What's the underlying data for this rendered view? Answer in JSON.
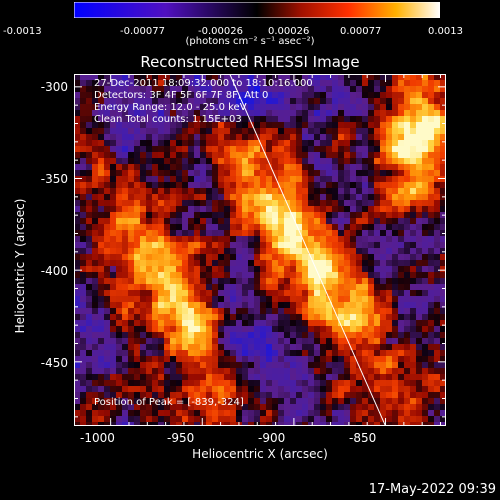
{
  "colorbar": {
    "ticks": [
      "-0.0013",
      "-0.00077",
      "-0.00026",
      "0.00026",
      "0.00077",
      "0.0013"
    ],
    "units": "(photons cm⁻² s⁻¹ asec⁻²)"
  },
  "title": "Reconstructed RHESSI Image",
  "info_lines": [
    "27-Dec-2011 18:09:32.000 to 18:10:16.000",
    "Detectors: 3F 4F 5F 6F 7F 8F, Att 0",
    "Energy Range: 12.0 - 25.0 keV",
    "Clean     Total counts: 1.15E+03"
  ],
  "peak_text": "Position of Peak = [-839,-324]",
  "chart_data": {
    "type": "heatmap",
    "title": "Reconstructed RHESSI Image",
    "xlabel": "Heliocentric X (arcsec)",
    "ylabel": "Heliocentric Y (arcsec)",
    "xlim": [
      -1020,
      -817
    ],
    "ylim": [
      -485,
      -293
    ],
    "x_ticks": [
      "-1000",
      "-950",
      "-900",
      "-850"
    ],
    "y_ticks": [
      "-300",
      "-350",
      "-400",
      "-450"
    ],
    "colorbar_range": [
      -0.0013,
      0.0013
    ],
    "peak_position": [
      -839,
      -324
    ],
    "limb_line": {
      "x": [
        -935,
        -850
      ],
      "y": [
        -293,
        -485
      ]
    }
  },
  "datestamp": "17-May-2022 09:39"
}
